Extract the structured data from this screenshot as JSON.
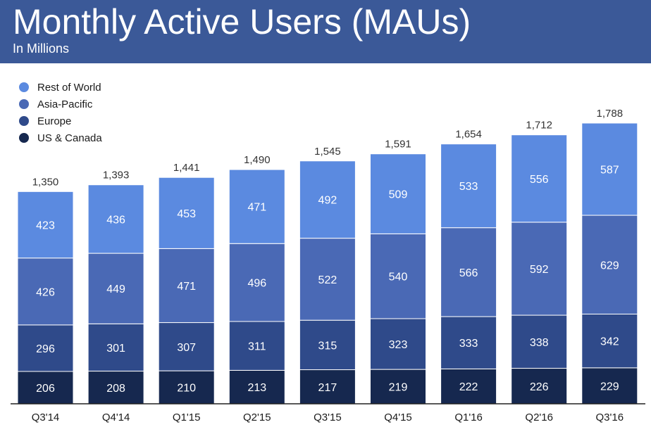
{
  "header": {
    "title": "Monthly Active Users (MAUs)",
    "subtitle": "In Millions"
  },
  "colors": {
    "header_bg": "#3b5998",
    "Rest of World": "#5b8ae0",
    "Asia-Pacific": "#4a69b5",
    "Europe": "#2f4a8a",
    "US & Canada": "#16284f"
  },
  "chart_data": {
    "type": "bar",
    "stacked": true,
    "title": "Monthly Active Users (MAUs)",
    "subtitle": "In Millions",
    "categories": [
      "Q3'14",
      "Q4'14",
      "Q1'15",
      "Q2'15",
      "Q3'15",
      "Q4'15",
      "Q1'16",
      "Q2'16",
      "Q3'16"
    ],
    "series": [
      {
        "name": "US & Canada",
        "values": [
          206,
          208,
          210,
          213,
          217,
          219,
          222,
          226,
          229
        ]
      },
      {
        "name": "Europe",
        "values": [
          296,
          301,
          307,
          311,
          315,
          323,
          333,
          338,
          342
        ]
      },
      {
        "name": "Asia-Pacific",
        "values": [
          426,
          449,
          471,
          496,
          522,
          540,
          566,
          592,
          629
        ]
      },
      {
        "name": "Rest of World",
        "values": [
          423,
          436,
          453,
          471,
          492,
          509,
          533,
          556,
          587
        ]
      }
    ],
    "totals": [
      "1,350",
      "1,393",
      "1,441",
      "1,490",
      "1,545",
      "1,591",
      "1,654",
      "1,712",
      "1,788"
    ],
    "legend": [
      "Rest of World",
      "Asia-Pacific",
      "Europe",
      "US & Canada"
    ],
    "legend_position": "top-left",
    "ylim": [
      0,
      1800
    ],
    "grid": false
  }
}
